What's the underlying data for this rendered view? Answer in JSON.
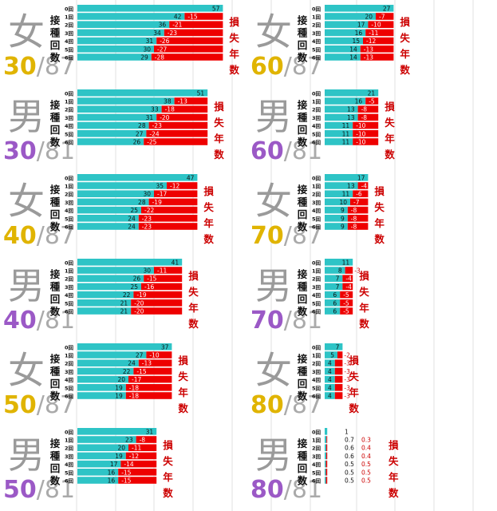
{
  "colors": {
    "teal": "#2ec4c6",
    "red": "#ee0000",
    "lossText": "#cc0000",
    "femaleNum": "#e0b400",
    "maleNum": "#9b59c6",
    "slash": "#aaaaaa",
    "sexChar": "#9a9a9a",
    "grid": "#e0e0e0"
  },
  "vertical_label": [
    "接",
    "種",
    "回",
    "数"
  ],
  "loss_label": [
    "損",
    "失",
    "年",
    "数"
  ],
  "row_labels": [
    "0回",
    "1回",
    "2回",
    "3回",
    "4回",
    "5回",
    "6回"
  ],
  "chart_data": [
    {
      "type": "bar",
      "sex": "女",
      "age": "30",
      "life": "87",
      "base": 57,
      "values": [
        42,
        36,
        34,
        31,
        30,
        29
      ],
      "losses": [
        -15,
        -21,
        -23,
        -26,
        -27,
        -28
      ]
    },
    {
      "type": "bar",
      "sex": "男",
      "age": "30",
      "life": "81",
      "base": 51,
      "values": [
        38,
        33,
        31,
        28,
        27,
        26
      ],
      "losses": [
        -13,
        -18,
        -20,
        -23,
        -24,
        -25
      ]
    },
    {
      "type": "bar",
      "sex": "女",
      "age": "40",
      "life": "87",
      "base": 47,
      "values": [
        35,
        30,
        28,
        25,
        24,
        24
      ],
      "losses": [
        -12,
        -17,
        -19,
        -22,
        -23,
        -23
      ]
    },
    {
      "type": "bar",
      "sex": "男",
      "age": "40",
      "life": "81",
      "base": 41,
      "values": [
        30,
        26,
        25,
        22,
        21,
        21
      ],
      "losses": [
        -11,
        -15,
        -16,
        -19,
        -20,
        -20
      ]
    },
    {
      "type": "bar",
      "sex": "女",
      "age": "50",
      "life": "87",
      "base": 37,
      "values": [
        27,
        24,
        22,
        20,
        19,
        19
      ],
      "losses": [
        -10,
        -13,
        -15,
        -17,
        -18,
        -18
      ]
    },
    {
      "type": "bar",
      "sex": "男",
      "age": "50",
      "life": "81",
      "base": 31,
      "values": [
        23,
        20,
        19,
        17,
        16,
        16
      ],
      "losses": [
        -8,
        -11,
        -12,
        -14,
        -15,
        -15
      ]
    },
    {
      "type": "bar",
      "sex": "女",
      "age": "60",
      "life": "87",
      "base": 27,
      "values": [
        20,
        17,
        16,
        15,
        14,
        14
      ],
      "losses": [
        -7,
        -10,
        -11,
        -12,
        -13,
        -13
      ]
    },
    {
      "type": "bar",
      "sex": "男",
      "age": "60",
      "life": "81",
      "base": 21,
      "values": [
        16,
        13,
        13,
        11,
        11,
        11
      ],
      "losses": [
        -5,
        -8,
        -8,
        -10,
        -10,
        -10
      ]
    },
    {
      "type": "bar",
      "sex": "女",
      "age": "70",
      "life": "87",
      "base": 17,
      "values": [
        13,
        11,
        10,
        9,
        9,
        9
      ],
      "losses": [
        -4,
        -6,
        -7,
        -8,
        -8,
        -8
      ]
    },
    {
      "type": "bar",
      "sex": "男",
      "age": "70",
      "life": "81",
      "base": 11,
      "values": [
        8,
        7,
        7,
        6,
        6,
        6
      ],
      "losses": [
        -3,
        -4,
        -4,
        -5,
        -5,
        -5
      ]
    },
    {
      "type": "bar",
      "sex": "女",
      "age": "80",
      "life": "87",
      "base": 7,
      "values": [
        5,
        4,
        4,
        4,
        4,
        4
      ],
      "losses": [
        -2,
        -3,
        -3,
        -3,
        -3,
        -3
      ]
    },
    {
      "type": "bar",
      "sex": "男",
      "age": "80",
      "life": "81",
      "base": 1,
      "values": [
        0.7,
        0.6,
        0.6,
        0.5,
        0.5,
        0.5
      ],
      "losses": [
        0.3,
        0.4,
        0.4,
        0.5,
        0.5,
        0.5
      ]
    }
  ]
}
